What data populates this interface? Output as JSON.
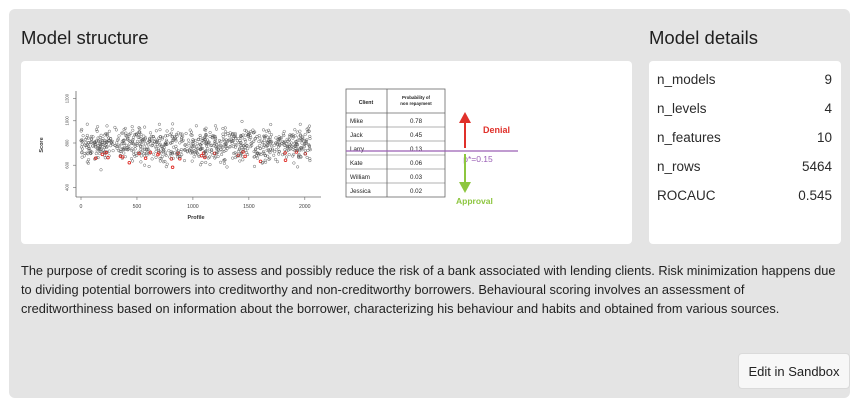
{
  "model_structure": {
    "title": "Model structure",
    "figure": {
      "scatter": {
        "y_axis_label": "Score",
        "x_axis_label": "Profile",
        "x_ticks": [
          "0",
          "500",
          "1000",
          "1500",
          "2000"
        ],
        "y_ticks": [
          "400",
          "600",
          "800",
          "1000",
          "1200"
        ],
        "x_range": [
          0,
          2100
        ],
        "y_range": [
          350,
          1250
        ],
        "point_colors": {
          "normal": "#555555",
          "highlight": "#e0302a"
        }
      },
      "table": {
        "headers": [
          "Client",
          "Probability of non repayment"
        ],
        "rows": [
          [
            "Mike",
            "0.78"
          ],
          [
            "Jack",
            "0.45"
          ],
          [
            "Larry",
            "0.13"
          ],
          [
            "Kate",
            "0.06"
          ],
          [
            "William",
            "0.03"
          ],
          [
            "Jessica",
            "0.02"
          ]
        ]
      },
      "threshold_label": "p*=0.15",
      "denial_label": "Denial",
      "approval_label": "Approval",
      "colors": {
        "denial": "#e0302a",
        "approval": "#8dc63f",
        "threshold": "#9a5fb5"
      }
    }
  },
  "model_details": {
    "title": "Model details",
    "rows": [
      {
        "key": "n_models",
        "value": "9"
      },
      {
        "key": "n_levels",
        "value": "4"
      },
      {
        "key": "n_features",
        "value": "10"
      },
      {
        "key": "n_rows",
        "value": "5464"
      },
      {
        "key": "ROCAUC",
        "value": "0.545"
      }
    ]
  },
  "description": "The purpose of credit scoring is to assess and possibly reduce the risk of a bank associated with lending clients. Risk minimization happens due to dividing potential borrowers into creditworthy and non-creditworthy borrowers. Behavioural scoring involves an assessment of creditworthiness based on information about the borrower, characterizing his behaviour and habits and obtained from various sources.",
  "edit_button_label": "Edit in Sandbox"
}
